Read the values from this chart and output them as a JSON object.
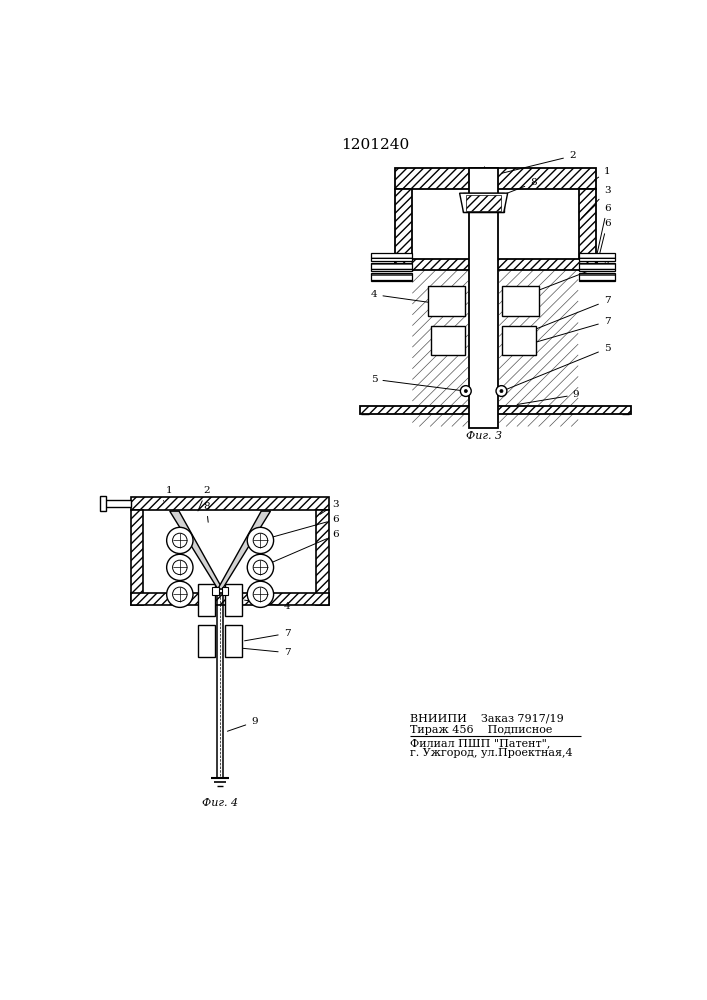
{
  "title": "1201240",
  "bg_color": "#ffffff",
  "fig3_caption": "Фиг. 3",
  "fig4_caption": "Фиг. 4",
  "bottom_text_line1": "ВНИИПИ    Заказ 7917/19",
  "bottom_text_line2": "Тираж 456    Подписное",
  "bottom_text_line3": "Филиал ПШП \"Патент\",",
  "bottom_text_line4": "г. Ужгород, ул.Проектная,4"
}
